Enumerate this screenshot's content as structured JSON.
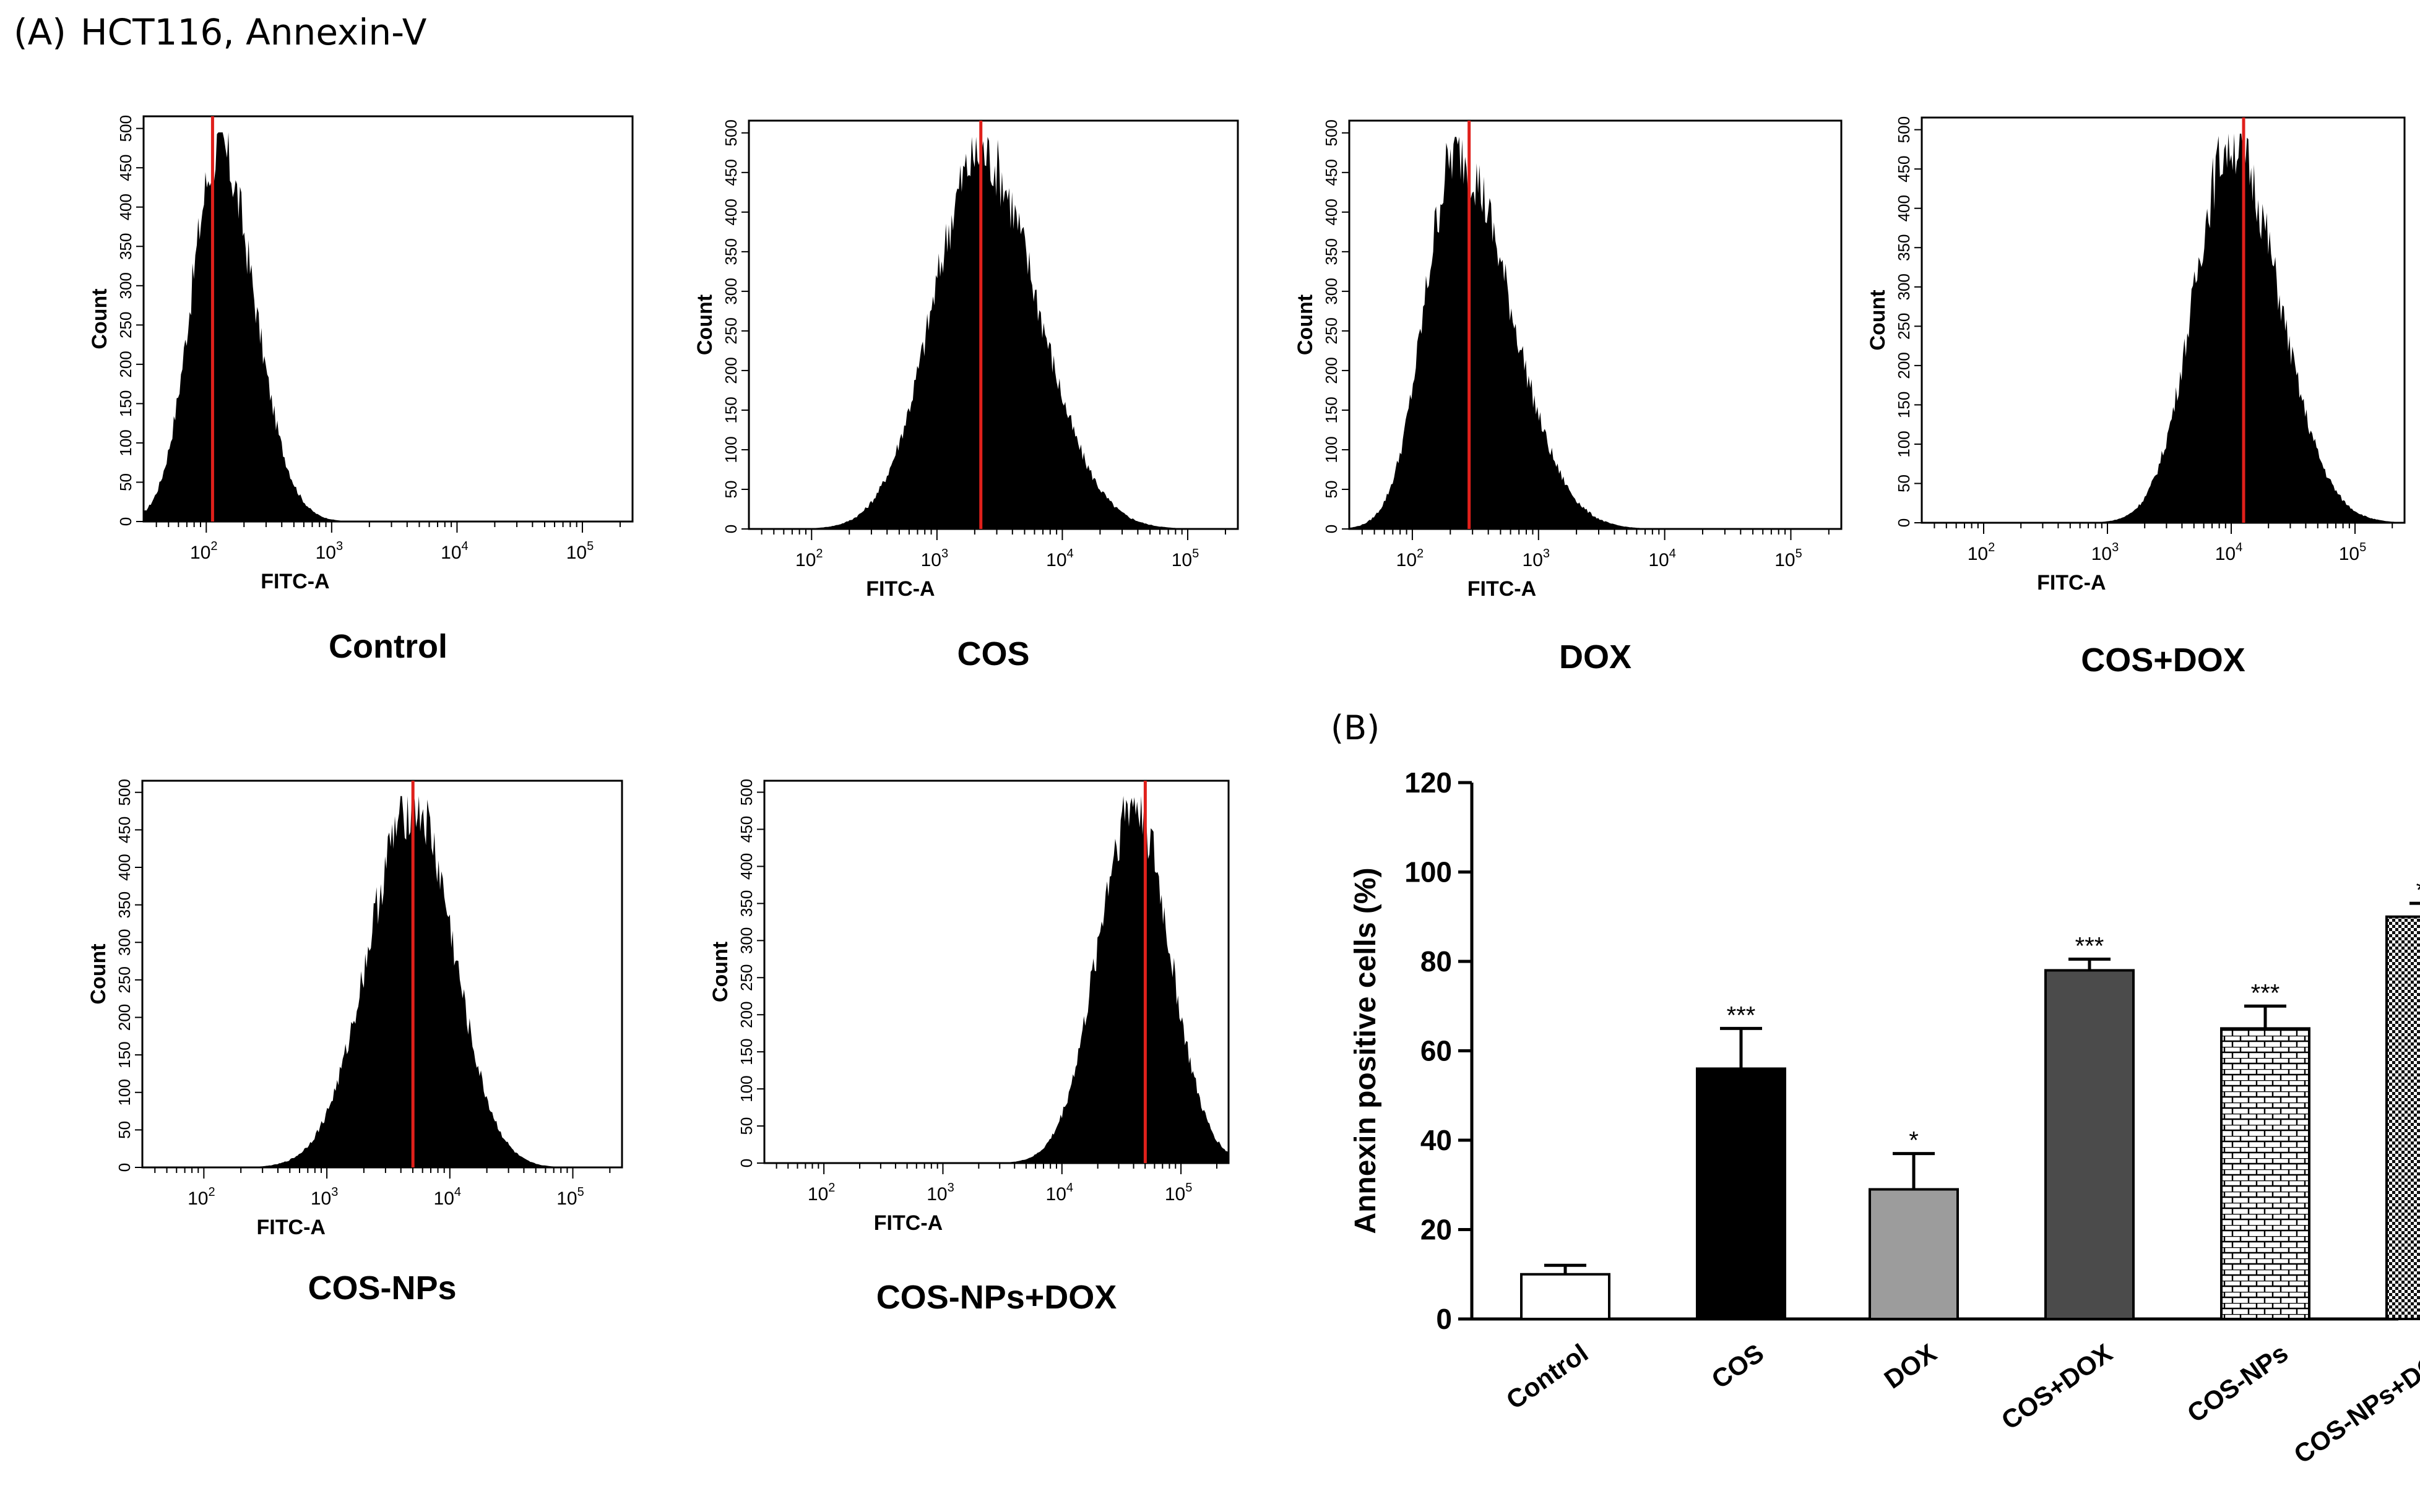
{
  "panel_a": {
    "label": "(A)",
    "title": "HCT116, Annexin-V",
    "y_ticks": [
      "0",
      "50",
      "100",
      "150",
      "200",
      "250",
      "300",
      "350",
      "400",
      "450",
      "500"
    ],
    "x_ticks": [
      {
        "base": "10",
        "exp": "2",
        "value": 2
      },
      {
        "base": "10",
        "exp": "3",
        "value": 3
      },
      {
        "base": "10",
        "exp": "4",
        "value": 4
      },
      {
        "base": "10",
        "exp": "5",
        "value": 5
      }
    ]
  },
  "panel_b": {
    "label": "(B)"
  },
  "chart_data": [
    {
      "type": "histogram",
      "name": "Control",
      "title": "Control",
      "xlabel": "FITC-A",
      "ylabel": "Count",
      "ylim": [
        0,
        500
      ],
      "x_scale": "log10",
      "xlim_log10": [
        1.5,
        5.4
      ],
      "peak_log10": 2.1,
      "spread_left": 0.22,
      "spread_right": 0.28,
      "peak_count": 480,
      "marker_log10": 2.05
    },
    {
      "type": "histogram",
      "name": "COS",
      "title": "COS",
      "xlabel": "FITC-A",
      "ylabel": "Count",
      "ylim": [
        0,
        500
      ],
      "x_scale": "log10",
      "xlim_log10": [
        1.5,
        5.4
      ],
      "peak_log10": 3.35,
      "spread_left": 0.38,
      "spread_right": 0.45,
      "peak_count": 480,
      "marker_log10": 3.35
    },
    {
      "type": "histogram",
      "name": "DOX",
      "title": "DOX",
      "xlabel": "FITC-A",
      "ylabel": "Count",
      "ylim": [
        0,
        500
      ],
      "x_scale": "log10",
      "xlim_log10": [
        1.5,
        5.4
      ],
      "peak_log10": 2.35,
      "spread_left": 0.25,
      "spread_right": 0.42,
      "peak_count": 480,
      "marker_log10": 2.45
    },
    {
      "type": "histogram",
      "name": "COS+DOX",
      "title": "COS+DOX",
      "xlabel": "FITC-A",
      "ylabel": "Count",
      "ylim": [
        0,
        500
      ],
      "x_scale": "log10",
      "xlim_log10": [
        1.5,
        5.4
      ],
      "peak_log10": 4.0,
      "spread_left": 0.3,
      "spread_right": 0.38,
      "peak_count": 490,
      "marker_log10": 4.1
    },
    {
      "type": "histogram",
      "name": "COS-NPs",
      "title": "COS-NPs",
      "xlabel": "FITC-A",
      "ylabel": "Count",
      "ylim": [
        0,
        500
      ],
      "x_scale": "log10",
      "xlim_log10": [
        1.5,
        5.4
      ],
      "peak_log10": 3.7,
      "spread_left": 0.36,
      "spread_right": 0.33,
      "peak_count": 490,
      "marker_log10": 3.7
    },
    {
      "type": "histogram",
      "name": "COS-NPs+DOX",
      "title": "COS-NPs+DOX",
      "xlabel": "FITC-A",
      "ylabel": "Count",
      "ylim": [
        0,
        500
      ],
      "x_scale": "log10",
      "xlim_log10": [
        1.5,
        5.4
      ],
      "peak_log10": 4.6,
      "spread_left": 0.3,
      "spread_right": 0.3,
      "peak_count": 490,
      "marker_log10": 4.7
    },
    {
      "type": "bar",
      "ylabel": "Annexin positive cells (%)",
      "ylim": [
        0,
        120
      ],
      "y_ticks": [
        "0",
        "20",
        "40",
        "60",
        "80",
        "100",
        "120"
      ],
      "categories": [
        "Control",
        "COS",
        "DOX",
        "COS+DOX",
        "COS-NPs",
        "COS-NPs+DOX"
      ],
      "values": [
        10,
        56,
        29,
        78,
        65,
        90
      ],
      "errors": [
        2,
        9,
        8,
        2.5,
        5,
        3
      ],
      "significance": [
        "",
        "***",
        "*",
        "***",
        "***",
        "***"
      ],
      "fills": [
        "white",
        "black",
        "light-gray",
        "dark-gray",
        "brick",
        "checker"
      ]
    }
  ],
  "colors": {
    "marker_line": "#e0201b",
    "dark_gray": "#4b4b4b",
    "light_gray": "#9c9c9c"
  }
}
